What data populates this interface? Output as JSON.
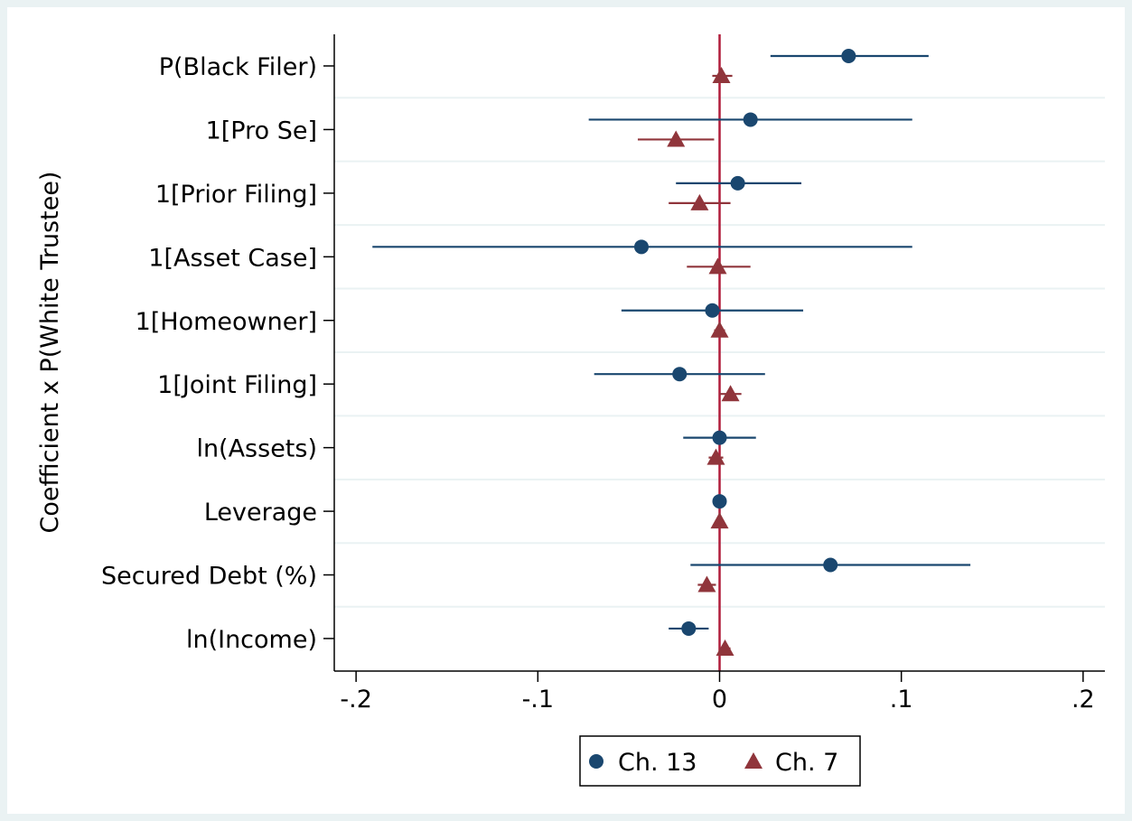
{
  "chart_data": {
    "type": "scatter",
    "subtype": "coefficient-plot-with-confidence-intervals",
    "title": "",
    "xlabel": "",
    "ylabel": "Coefficient x P(White Trustee)",
    "xlim": [
      -0.212,
      0.212
    ],
    "x_ticks": [
      {
        "value": -0.2,
        "label": "-.2"
      },
      {
        "value": -0.1,
        "label": "-.1"
      },
      {
        "value": 0,
        "label": "0"
      },
      {
        "value": 0.1,
        "label": ".1"
      },
      {
        "value": 0.2,
        "label": ".2"
      }
    ],
    "categories": [
      "P(Black Filer)",
      "1[Pro Se]",
      "1[Prior Filing]",
      "1[Asset Case]",
      "1[Homeowner]",
      "1[Joint Filing]",
      "ln(Assets)",
      "Leverage",
      "Secured Debt (%)",
      "ln(Income)"
    ],
    "reference_line": {
      "x": 0,
      "color": "#b01c3a"
    },
    "grid": "horizontal",
    "legend_position": "bottom",
    "series": [
      {
        "name": "Ch. 13",
        "marker": "circle",
        "color": "#1a476f",
        "values": [
          0.071,
          0.017,
          0.01,
          -0.043,
          -0.004,
          -0.022,
          0.0,
          0.0,
          0.061,
          -0.017
        ],
        "ci_low": [
          0.028,
          -0.072,
          -0.024,
          -0.191,
          -0.054,
          -0.069,
          -0.02,
          0.0,
          -0.016,
          -0.028
        ],
        "ci_high": [
          0.115,
          0.106,
          0.045,
          0.106,
          0.046,
          0.025,
          0.02,
          0.0,
          0.138,
          -0.006
        ]
      },
      {
        "name": "Ch. 7",
        "marker": "triangle",
        "color": "#90353b",
        "values": [
          0.001,
          -0.024,
          -0.011,
          -0.001,
          0.0,
          0.006,
          -0.002,
          0.0,
          -0.007,
          0.003
        ],
        "ci_low": [
          -0.004,
          -0.045,
          -0.028,
          -0.018,
          -0.003,
          0.0,
          -0.006,
          0.0,
          -0.012,
          0.0
        ],
        "ci_high": [
          0.007,
          -0.003,
          0.006,
          0.017,
          0.003,
          0.012,
          0.002,
          0.0,
          -0.002,
          0.006
        ]
      }
    ]
  }
}
